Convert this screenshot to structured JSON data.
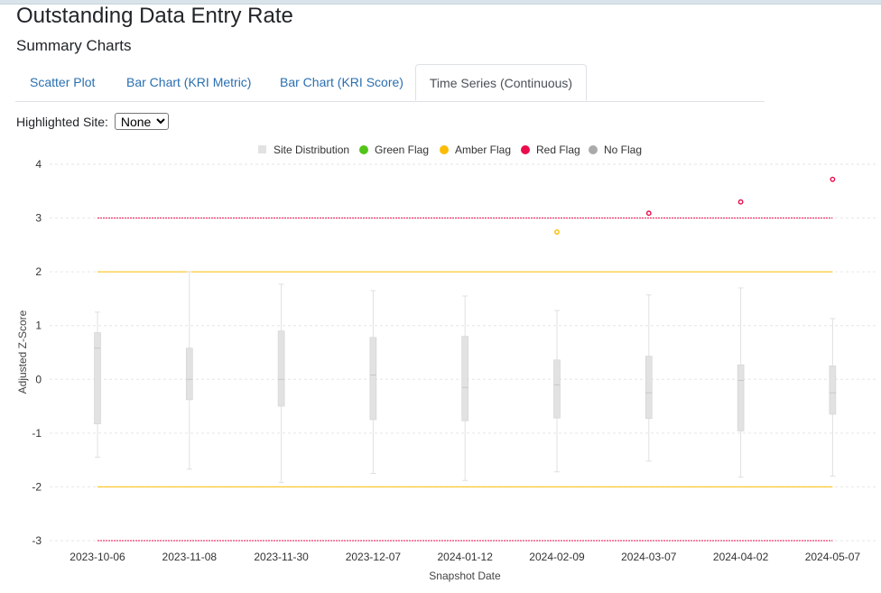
{
  "page": {
    "title": "Outstanding Data Entry Rate",
    "subtitle": "Summary Charts"
  },
  "tabs": [
    {
      "label": "Scatter Plot",
      "active": false
    },
    {
      "label": "Bar Chart (KRI Metric)",
      "active": false
    },
    {
      "label": "Bar Chart (KRI Score)",
      "active": false
    },
    {
      "label": "Time Series (Continuous)",
      "active": true
    }
  ],
  "site_filter": {
    "label": "Highlighted Site:",
    "selected": "None"
  },
  "colors": {
    "tab_link": "#2a6fb0",
    "box": "#e2e2e2",
    "green": "#52c41a",
    "amber": "#fbbc05",
    "red": "#ea0c4b",
    "none": "#aaaaaa"
  },
  "chart_data": {
    "type": "box",
    "xlabel": "Snapshot Date",
    "ylabel": "Adjusted Z-Score",
    "ylim": [
      -3,
      4
    ],
    "yticks": [
      -3,
      -2,
      -1,
      0,
      1,
      2,
      3,
      4
    ],
    "grid": true,
    "legend": [
      {
        "label": "Site Distribution",
        "color": "#e2e2e2",
        "shape": "square"
      },
      {
        "label": "Green Flag",
        "color": "#52c41a",
        "shape": "circle"
      },
      {
        "label": "Amber Flag",
        "color": "#fbbc05",
        "shape": "circle"
      },
      {
        "label": "Red Flag",
        "color": "#ea0c4b",
        "shape": "circle"
      },
      {
        "label": "No Flag",
        "color": "#aaaaaa",
        "shape": "circle"
      }
    ],
    "legend_position": "top-center",
    "categories": [
      "2023-10-06",
      "2023-11-08",
      "2023-11-30",
      "2023-12-07",
      "2024-01-12",
      "2024-02-09",
      "2024-03-07",
      "2024-04-02",
      "2024-05-07"
    ],
    "boxes": [
      {
        "min": -1.45,
        "q1": -0.83,
        "median": 0.58,
        "q3": 0.87,
        "max": 1.25
      },
      {
        "min": -1.67,
        "q1": -0.38,
        "median": 0.0,
        "q3": 0.58,
        "max": 2.0
      },
      {
        "min": -1.92,
        "q1": -0.5,
        "median": 0.0,
        "q3": 0.9,
        "max": 1.77
      },
      {
        "min": -1.75,
        "q1": -0.75,
        "median": 0.08,
        "q3": 0.78,
        "max": 1.65
      },
      {
        "min": -1.88,
        "q1": -0.77,
        "median": -0.15,
        "q3": 0.8,
        "max": 1.55
      },
      {
        "min": -1.72,
        "q1": -0.72,
        "median": -0.1,
        "q3": 0.36,
        "max": 1.28
      },
      {
        "min": -1.52,
        "q1": -0.73,
        "median": -0.25,
        "q3": 0.43,
        "max": 1.57
      },
      {
        "min": -1.82,
        "q1": -0.96,
        "median": -0.02,
        "q3": 0.27,
        "max": 1.7
      },
      {
        "min": -1.8,
        "q1": -0.65,
        "median": -0.25,
        "q3": 0.25,
        "max": 1.13
      }
    ],
    "thresholds": [
      {
        "value": 3,
        "flag": "red"
      },
      {
        "value": 2,
        "flag": "amber"
      },
      {
        "value": -2,
        "flag": "amber"
      },
      {
        "value": -3,
        "flag": "red"
      }
    ],
    "points": [
      {
        "category": "2024-02-09",
        "value": 2.74,
        "flag": "amber"
      },
      {
        "category": "2024-03-07",
        "value": 3.09,
        "flag": "red"
      },
      {
        "category": "2024-04-02",
        "value": 3.3,
        "flag": "red"
      },
      {
        "category": "2024-05-07",
        "value": 3.72,
        "flag": "red"
      }
    ]
  }
}
